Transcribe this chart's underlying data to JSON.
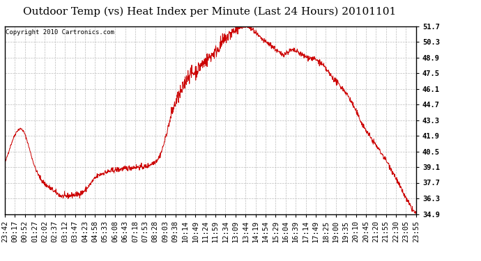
{
  "title": "Outdoor Temp (vs) Heat Index per Minute (Last 24 Hours) 20101101",
  "copyright": "Copyright 2010 Cartronics.com",
  "line_color": "#cc0000",
  "background_color": "#ffffff",
  "grid_color": "#bbbbbb",
  "ylim": [
    34.9,
    51.7
  ],
  "yticks": [
    34.9,
    36.3,
    37.7,
    39.1,
    40.5,
    41.9,
    43.3,
    44.7,
    46.1,
    47.5,
    48.9,
    50.3,
    51.7
  ],
  "xtick_labels": [
    "23:42",
    "00:17",
    "00:52",
    "01:27",
    "02:02",
    "02:37",
    "03:12",
    "03:47",
    "04:23",
    "04:58",
    "05:33",
    "06:08",
    "06:43",
    "07:18",
    "07:53",
    "08:28",
    "09:03",
    "09:38",
    "10:14",
    "10:49",
    "11:24",
    "11:59",
    "12:34",
    "13:09",
    "13:44",
    "14:19",
    "14:54",
    "15:29",
    "16:04",
    "16:39",
    "17:14",
    "17:49",
    "18:25",
    "19:00",
    "19:35",
    "20:10",
    "20:45",
    "21:20",
    "21:55",
    "22:30",
    "23:05",
    "23:55"
  ],
  "title_fontsize": 11,
  "copyright_fontsize": 6.5,
  "tick_fontsize": 7.5,
  "keypoints_x": [
    0,
    40,
    65,
    100,
    160,
    180,
    200,
    220,
    240,
    260,
    280,
    320,
    340,
    380,
    430,
    460,
    500,
    520,
    540,
    560,
    580,
    600,
    620,
    640,
    660,
    680,
    700,
    720,
    740,
    760,
    780,
    800,
    820,
    840,
    860,
    880,
    900,
    940,
    970,
    1000,
    1050,
    1100,
    1150,
    1200,
    1250,
    1300,
    1350,
    1380,
    1410,
    1439
  ],
  "keypoints_y": [
    39.4,
    42.2,
    42.3,
    39.5,
    37.2,
    36.8,
    36.5,
    36.5,
    36.6,
    36.7,
    37.0,
    38.2,
    38.5,
    38.8,
    39.0,
    39.1,
    39.2,
    39.5,
    40.0,
    41.5,
    43.5,
    45.0,
    46.0,
    47.2,
    47.5,
    48.0,
    48.5,
    49.0,
    49.5,
    50.2,
    50.8,
    51.2,
    51.5,
    51.7,
    51.5,
    51.0,
    50.5,
    49.8,
    49.2,
    49.5,
    49.0,
    48.5,
    47.0,
    45.5,
    43.0,
    41.0,
    39.0,
    37.5,
    36.0,
    34.9
  ]
}
